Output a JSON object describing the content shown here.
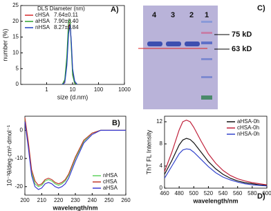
{
  "chart_data": [
    {
      "type": "line",
      "panel_label": "A)",
      "xlabel": "size (d.nm)",
      "ylabel": "number (%)",
      "xscale": "log",
      "xlim": [
        0.1,
        1000
      ],
      "xticks": [
        1,
        10,
        100,
        1000
      ],
      "ylim": [
        0,
        25
      ],
      "yticks": [
        0,
        5,
        10,
        15,
        20,
        25
      ],
      "legend_title": "DLS Diameter (nm)",
      "legend": "upper left",
      "x": [
        4,
        5,
        6,
        7,
        8,
        9,
        10,
        12,
        15
      ],
      "series": [
        {
          "name": "cHSA",
          "note": "7.64±0.11",
          "color": "#d62728",
          "values": [
            0,
            1,
            8,
            18,
            19.5,
            12,
            4,
            0.5,
            0
          ]
        },
        {
          "name": "aHSA",
          "note": "7.90±0.40",
          "color": "#2ca02c",
          "values": [
            0,
            1.5,
            9,
            20,
            20.5,
            11,
            3,
            0.3,
            0
          ]
        },
        {
          "name": "nHSA",
          "note": "8.27±0.84",
          "color": "#1f3fbf",
          "values": [
            0,
            0.5,
            6,
            16,
            19,
            13,
            5,
            1,
            0
          ]
        }
      ]
    },
    {
      "type": "line",
      "panel_label": "B)",
      "xlabel": "wavelength/nm",
      "ylabel": "10⁻³θ/deg·cm²·dmol⁻¹",
      "xlim": [
        200,
        260
      ],
      "xticks": [
        200,
        210,
        220,
        230,
        240,
        250,
        260
      ],
      "ylim": [
        -23,
        5
      ],
      "yticks": [
        -20,
        -10,
        0
      ],
      "legend": "lower right",
      "x": [
        200,
        202,
        204,
        206,
        208,
        210,
        212,
        214,
        216,
        218,
        220,
        222,
        224,
        226,
        228,
        230,
        235,
        240,
        245,
        250,
        255,
        260
      ],
      "series": [
        {
          "name": "nHSA",
          "color": "#5fd35f",
          "values": [
            4,
            -5,
            -15,
            -19,
            -20,
            -19.5,
            -18,
            -17.5,
            -18,
            -19,
            -19.5,
            -19,
            -18,
            -16,
            -13,
            -10,
            -4,
            -1,
            0,
            0,
            0,
            0
          ]
        },
        {
          "name": "cHSA",
          "color": "#c0392b",
          "values": [
            4.5,
            -4,
            -14,
            -18,
            -19.5,
            -19,
            -17.5,
            -17,
            -17.5,
            -18.5,
            -19,
            -18.5,
            -17.5,
            -15.5,
            -12.5,
            -9.5,
            -3.5,
            -1,
            0,
            0,
            0,
            0
          ]
        },
        {
          "name": "aHSA",
          "color": "#3a3ad0",
          "values": [
            3,
            -6,
            -16,
            -20,
            -21,
            -20.5,
            -19,
            -18.5,
            -19,
            -20,
            -20.5,
            -20,
            -19,
            -17,
            -14,
            -11,
            -4.5,
            -1.5,
            0,
            0,
            0,
            0
          ]
        }
      ]
    },
    {
      "type": "line",
      "panel_label": "D)",
      "xlabel": "wavelength/nm",
      "ylabel": "ThT FL Intensity",
      "xlim": [
        460,
        600
      ],
      "xticks": [
        460,
        480,
        500,
        520,
        540,
        560,
        580,
        600
      ],
      "ylim": [
        0,
        13
      ],
      "yticks": [
        0,
        4,
        8,
        12
      ],
      "legend": "upper right",
      "x": [
        460,
        470,
        480,
        485,
        490,
        495,
        500,
        510,
        520,
        530,
        540,
        550,
        560,
        570,
        580,
        590,
        600
      ],
      "series": [
        {
          "name": "aHSA-0h",
          "color": "#111111",
          "values": [
            2.5,
            5,
            7.8,
            8.7,
            9,
            8.8,
            8.2,
            6.5,
            4.8,
            3.5,
            2.5,
            1.8,
            1.3,
            1,
            0.8,
            0.6,
            0.5
          ]
        },
        {
          "name": "cHSA-0h",
          "color": "#c0203a",
          "values": [
            3,
            6.5,
            10.5,
            12,
            12.3,
            12,
            11,
            8.5,
            6.2,
            4.5,
            3.2,
            2.3,
            1.7,
            1.3,
            1,
            0.8,
            0.6
          ]
        },
        {
          "name": "nHSA-0h",
          "color": "#3344cc",
          "values": [
            1.8,
            4,
            6.2,
            6.9,
            7.1,
            7,
            6.5,
            5.2,
            3.9,
            2.8,
            2,
            1.5,
            1.1,
            0.8,
            0.6,
            0.5,
            0.4
          ]
        }
      ]
    }
  ],
  "gel": {
    "panel_label": "C)",
    "lane_labels": [
      "4",
      "3",
      "2",
      "1"
    ],
    "markers": [
      "75 kD",
      "63 kD"
    ]
  }
}
